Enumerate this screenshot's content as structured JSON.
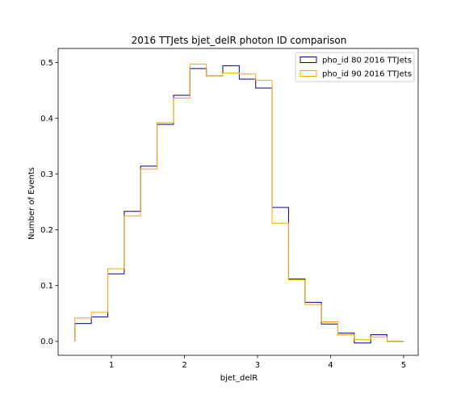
{
  "chart_data": {
    "type": "histogram",
    "title": "2016 TTJets bjet_delR photon ID comparison",
    "xlabel": "bjet_delR",
    "ylabel": "Number of Events",
    "xlim": [
      0.27,
      5.2
    ],
    "ylim": [
      -0.025,
      0.525
    ],
    "xticks": [
      1,
      2,
      3,
      4,
      5
    ],
    "yticks": [
      0.0,
      0.1,
      0.2,
      0.3,
      0.4,
      0.5
    ],
    "ytick_labels": [
      "0.0",
      "0.1",
      "0.2",
      "0.3",
      "0.4",
      "0.5"
    ],
    "grid": false,
    "legend_position": "upper-right",
    "bin_edges": [
      0.5,
      0.725,
      0.95,
      1.175,
      1.4,
      1.625,
      1.85,
      2.075,
      2.3,
      2.525,
      2.75,
      2.975,
      3.2,
      3.425,
      3.65,
      3.875,
      4.1,
      4.325,
      4.55,
      4.775,
      5.0
    ],
    "series": [
      {
        "name": "pho_id 80 2016 TTJets",
        "color": "#00008b",
        "values": [
          0.032,
          0.044,
          0.121,
          0.233,
          0.314,
          0.389,
          0.441,
          0.489,
          0.476,
          0.494,
          0.47,
          0.454,
          0.24,
          0.112,
          0.07,
          0.031,
          0.015,
          -0.003,
          0.012,
          0.0
        ]
      },
      {
        "name": "pho_id 90 2016 TTJets",
        "color": "#ffa500",
        "values": [
          0.042,
          0.052,
          0.13,
          0.225,
          0.309,
          0.392,
          0.436,
          0.497,
          0.476,
          0.481,
          0.479,
          0.468,
          0.212,
          0.11,
          0.066,
          0.035,
          0.012,
          0.003,
          0.008,
          0.0
        ]
      }
    ]
  }
}
